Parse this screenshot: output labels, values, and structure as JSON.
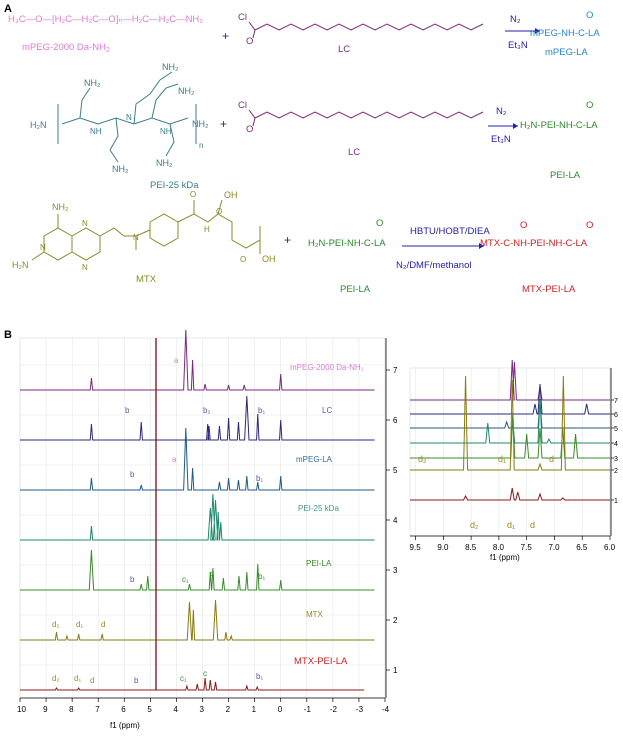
{
  "panel_a": {
    "label": "A",
    "row1": {
      "mpeg_name": "mPEG-2000 Da-NH",
      "mpeg_sub": "2",
      "mpeg_formula": "H₃C—O—[H₂C—H₂C—O]ₙ—H₂C—H₂C—NH₂",
      "plus": "+",
      "cl": "Cl",
      "o": "O",
      "lc_label": "LC",
      "cond_top": "N₂",
      "cond_bottom": "Et₃N",
      "product_o": "O",
      "product_formula": "mPEG-NH-C-LA",
      "product_name": "mPEG-LA"
    },
    "row2": {
      "h2n": "H₂N",
      "nh2": "NH₂",
      "nh": "NH",
      "n": "N",
      "sub_n": "n",
      "pei_name": "PEI-25 kDa",
      "plus": "+",
      "cl": "Cl",
      "o": "O",
      "lc_label": "LC",
      "cond_top": "N₂",
      "cond_bottom": "Et₃N",
      "product_o": "O",
      "product_formula": "H₂N-PEI-NH-C-LA",
      "product_name": "PEI-LA"
    },
    "row3": {
      "nh2": "NH₂",
      "h2n": "H₂N",
      "n": "N",
      "h": "H",
      "oh": "OH",
      "o": "O",
      "ho": "HO",
      "mtx_name": "MTX",
      "plus": "+",
      "reactant_o": "O",
      "reactant_formula": "H₂N-PEI-NH-C-LA",
      "reactant_name": "PEI-LA",
      "cond_top": "HBTU/HOBT/DIEA",
      "cond_bottom": "N₂/DMF/methanol",
      "product_o1": "O",
      "product_o2": "O",
      "product_formula": "MTX-C-NH-PEI-NH-C-LA",
      "product_name": "MTX-PEI-LA"
    }
  },
  "panel_b": {
    "label": "B",
    "main_axis": {
      "xlabel": "f1 (ppm)",
      "ticks": [
        "10",
        "9",
        "8",
        "7",
        "6",
        "5",
        "4",
        "3",
        "2",
        "1",
        "0",
        "-1",
        "-2",
        "-3",
        "-4"
      ],
      "right_ticks": [
        "7",
        "6",
        "5",
        "4",
        "3",
        "2",
        "1"
      ]
    },
    "traces": [
      {
        "name": "mPEG-2000 Da-NH₂",
        "color": "#7b2a7e",
        "label_color": "#e07ad6"
      },
      {
        "name": "LC",
        "color": "#2b2a7a",
        "label_color": "#5a5aa8"
      },
      {
        "name": "mPEG-LA",
        "color": "#1f5a87",
        "label_color": "#2e6c9e"
      },
      {
        "name": "PEI-25 kDa",
        "color": "#1d8a6b",
        "label_color": "#3a9a87"
      },
      {
        "name": "PEI-LA",
        "color": "#3a8c2a",
        "label_color": "#3a8c2a"
      },
      {
        "name": "MTX",
        "color": "#8a7a12",
        "label_color": "#9a8a22"
      },
      {
        "name": "MTX-PEI-LA",
        "color": "#8c1a1a",
        "label_color": "#d02020"
      }
    ],
    "annotations": {
      "a1": "a",
      "b2": "b",
      "b2s": "b₂",
      "b1s": "b₁",
      "a2": "a",
      "b3": "b",
      "b1s2": "b₁",
      "b4": "b",
      "c1": "c₁",
      "c": "c",
      "b1s3": "b₁",
      "d2": "d₂",
      "d1": "d₁",
      "d": "d",
      "d2b": "d₂",
      "d1b": "d₁",
      "db": "d",
      "b5": "b",
      "c1b": "c₁",
      "cb": "c",
      "b1s4": "b₁"
    },
    "inset": {
      "xlabel": "f1 (ppm)",
      "ticks": [
        "9.5",
        "9.0",
        "8.5",
        "8.0",
        "7.5",
        "7.0",
        "6.5",
        "6.0"
      ],
      "right_ticks": [
        "7",
        "6",
        "5",
        "4",
        "3",
        "2",
        "1"
      ],
      "labels": {
        "d2": "d₂",
        "d1": "d₁",
        "d": "d",
        "d2b": "d₂",
        "d1b": "d₁",
        "db": "d"
      }
    }
  }
}
